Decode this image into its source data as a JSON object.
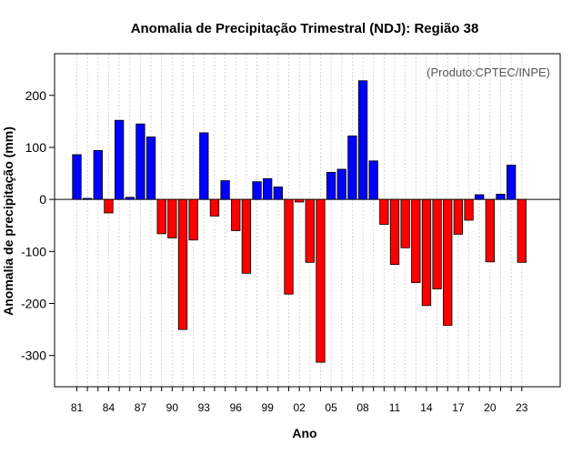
{
  "chart_data": {
    "type": "bar",
    "title": "Anomalia de Precipitação Trimestral (NDJ): Região 38",
    "xlabel": "Ano",
    "ylabel": "Anomalia de precipitação (mm)",
    "credit": "(Produto:CPTEC/INPE)",
    "ylim": [
      -360,
      280
    ],
    "yticks": [
      200,
      100,
      0,
      -100,
      -200,
      -300
    ],
    "ytick_labels": [
      "200",
      "100",
      "0",
      "-100",
      "-200",
      "-300"
    ],
    "xtick_labels": [
      "81",
      "84",
      "87",
      "90",
      "93",
      "96",
      "99",
      "02",
      "05",
      "08",
      "11",
      "14",
      "17",
      "20",
      "23"
    ],
    "categories": [
      "81",
      "82",
      "83",
      "84",
      "85",
      "86",
      "87",
      "88",
      "89",
      "90",
      "91",
      "92",
      "93",
      "94",
      "95",
      "96",
      "97",
      "98",
      "99",
      "00",
      "01",
      "02",
      "03",
      "04",
      "05",
      "06",
      "07",
      "08",
      "09",
      "10",
      "11",
      "12",
      "13",
      "14",
      "15",
      "16",
      "17",
      "18",
      "19",
      "20",
      "21",
      "22",
      "23"
    ],
    "values": [
      86,
      2,
      94,
      -26,
      152,
      4,
      145,
      120,
      -66,
      -74,
      -250,
      -78,
      128,
      -32,
      36,
      -60,
      -142,
      34,
      40,
      24,
      -182,
      -5,
      -121,
      -313,
      52,
      58,
      122,
      228,
      74,
      -48,
      -125,
      -93,
      -160,
      -204,
      -172,
      -242,
      -67,
      -40,
      9,
      -120,
      10,
      66,
      -121
    ],
    "positive_color": "#0000ff",
    "negative_color": "#ff0000"
  }
}
